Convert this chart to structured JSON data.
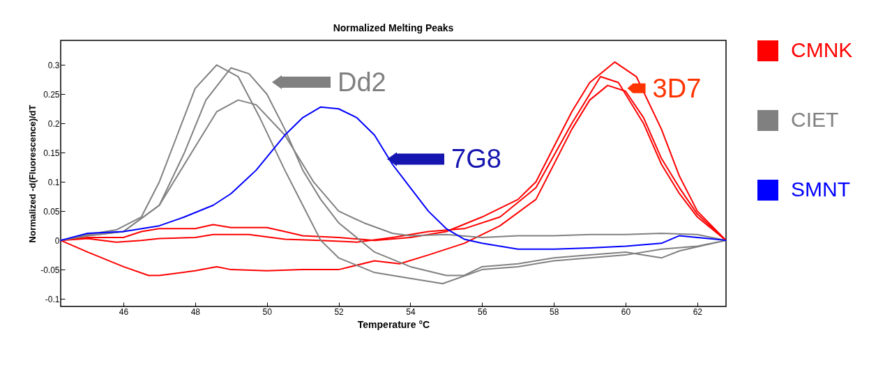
{
  "chart_data": {
    "type": "line",
    "title": "Normalized Melting Peaks",
    "xlabel": "Temperature °C",
    "ylabel": "Normalized -d(Fluorescence)/dT",
    "xlim": [
      44.25,
      62.8
    ],
    "ylim": [
      -0.113,
      0.342
    ],
    "xticks": [
      46,
      48,
      50,
      52,
      54,
      56,
      58,
      60,
      62
    ],
    "yticks": [
      -0.1,
      -0.05,
      0,
      0.05,
      0.1,
      0.15,
      0.2,
      0.25,
      0.3
    ],
    "grid": false,
    "legend": "right",
    "marker": "none",
    "line_style": "solid",
    "annotations": [
      "Dd2",
      {
        "text": "7G8",
        "x": 53.35,
        "y": 0.139
      },
      {
        "text": "3D7",
        "x": 60.05,
        "y": 0.26
      }
    ],
    "series": [
      {
        "name": "CMNK",
        "color": "#ff0000",
        "x": [
          44.25,
          45,
          46,
          46.5,
          47,
          48,
          48.5,
          49,
          50,
          50.5,
          51,
          52,
          53,
          54,
          55,
          56,
          57,
          57.5,
          58,
          58.5,
          59,
          59.7,
          60.3,
          61,
          61.5,
          62,
          62.8
        ],
        "values": [
          0,
          0.005,
          0.005,
          0.015,
          0.02,
          0.02,
          0.027,
          0.022,
          0.022,
          0.015,
          0.008,
          0.005,
          0,
          0.005,
          0.015,
          0.04,
          0.07,
          0.1,
          0.16,
          0.22,
          0.27,
          0.305,
          0.28,
          0.19,
          0.11,
          0.05,
          0
        ]
      },
      {
        "color": "#ff0000",
        "x": [
          44.25,
          45,
          45.8,
          46.5,
          47,
          48,
          48.5,
          49.5,
          50.5,
          51.5,
          52.5,
          53.5,
          54.5,
          55.5,
          56.5,
          57.5,
          58.5,
          59.3,
          59.8,
          60.5,
          61,
          61.5,
          62,
          62.8
        ],
        "values": [
          0,
          0.003,
          -0.003,
          0,
          0.003,
          0.005,
          0.01,
          0.01,
          0.002,
          0,
          -0.003,
          0.005,
          0.015,
          0.02,
          0.04,
          0.09,
          0.2,
          0.28,
          0.27,
          0.2,
          0.13,
          0.08,
          0.04,
          0
        ]
      },
      {
        "color": "#ff0000",
        "x": [
          44.25,
          45,
          46,
          46.7,
          47,
          48,
          48.6,
          49,
          50,
          51,
          52,
          53,
          53.7,
          54.5,
          55.5,
          56.5,
          57.5,
          58.5,
          59,
          59.5,
          60,
          60.5,
          61,
          61.5,
          62,
          62.8
        ],
        "values": [
          0,
          -0.02,
          -0.045,
          -0.06,
          -0.06,
          -0.052,
          -0.045,
          -0.05,
          -0.052,
          -0.05,
          -0.05,
          -0.035,
          -0.04,
          -0.025,
          -0.005,
          0.025,
          0.07,
          0.19,
          0.24,
          0.265,
          0.255,
          0.21,
          0.14,
          0.09,
          0.045,
          0
        ]
      },
      {
        "name": "CIET",
        "color": "#808080",
        "x": [
          44.25,
          45,
          45.8,
          46.5,
          47,
          47.5,
          48,
          48.6,
          49.2,
          49.8,
          50.5,
          51,
          51.5,
          52,
          53,
          54,
          54.9,
          56,
          57,
          58,
          59,
          60,
          61,
          62,
          62.8
        ],
        "values": [
          0,
          0.01,
          0.018,
          0.04,
          0.1,
          0.18,
          0.26,
          0.3,
          0.28,
          0.21,
          0.12,
          0.06,
          0,
          -0.03,
          -0.055,
          -0.065,
          -0.074,
          -0.05,
          -0.045,
          -0.035,
          -0.03,
          -0.025,
          -0.015,
          -0.01,
          0
        ]
      },
      {
        "color": "#808080",
        "x": [
          44.25,
          45,
          46,
          47,
          47.7,
          48.3,
          49,
          49.5,
          50,
          50.5,
          51,
          51.5,
          52,
          53,
          54,
          55,
          55.5,
          56,
          57,
          58,
          59,
          60,
          61,
          61.5,
          62.8
        ],
        "values": [
          0,
          0.008,
          0.015,
          0.06,
          0.15,
          0.24,
          0.295,
          0.285,
          0.25,
          0.19,
          0.12,
          0.07,
          0.03,
          -0.02,
          -0.045,
          -0.06,
          -0.06,
          -0.045,
          -0.04,
          -0.03,
          -0.025,
          -0.02,
          -0.03,
          -0.018,
          0
        ]
      },
      {
        "color": "#808080",
        "x": [
          44.25,
          45,
          46,
          47,
          48,
          48.6,
          49.2,
          49.7,
          50.5,
          51.3,
          52,
          52.7,
          53.5,
          54,
          55,
          56,
          57,
          58,
          59,
          60,
          61,
          62,
          62.8
        ],
        "values": [
          0,
          0.008,
          0.015,
          0.06,
          0.16,
          0.22,
          0.24,
          0.232,
          0.18,
          0.1,
          0.05,
          0.03,
          0.012,
          0.008,
          0.01,
          0.005,
          0.008,
          0.008,
          0.01,
          0.01,
          0.012,
          0.01,
          0
        ]
      },
      {
        "name": "SMNT",
        "color": "#0000ff",
        "x": [
          44.25,
          45,
          46,
          47,
          47.7,
          48.5,
          49,
          49.7,
          50.5,
          51,
          51.5,
          52,
          52.5,
          53,
          53.5,
          54,
          54.5,
          55,
          55.5,
          56,
          57,
          58,
          59,
          60,
          61,
          61.5,
          62,
          62.8
        ],
        "values": [
          0,
          0.012,
          0.015,
          0.025,
          0.04,
          0.06,
          0.08,
          0.12,
          0.18,
          0.21,
          0.228,
          0.225,
          0.21,
          0.18,
          0.13,
          0.09,
          0.05,
          0.02,
          0.002,
          -0.005,
          -0.015,
          -0.015,
          -0.013,
          -0.01,
          -0.005,
          0.008,
          0.005,
          0
        ]
      }
    ]
  }
}
